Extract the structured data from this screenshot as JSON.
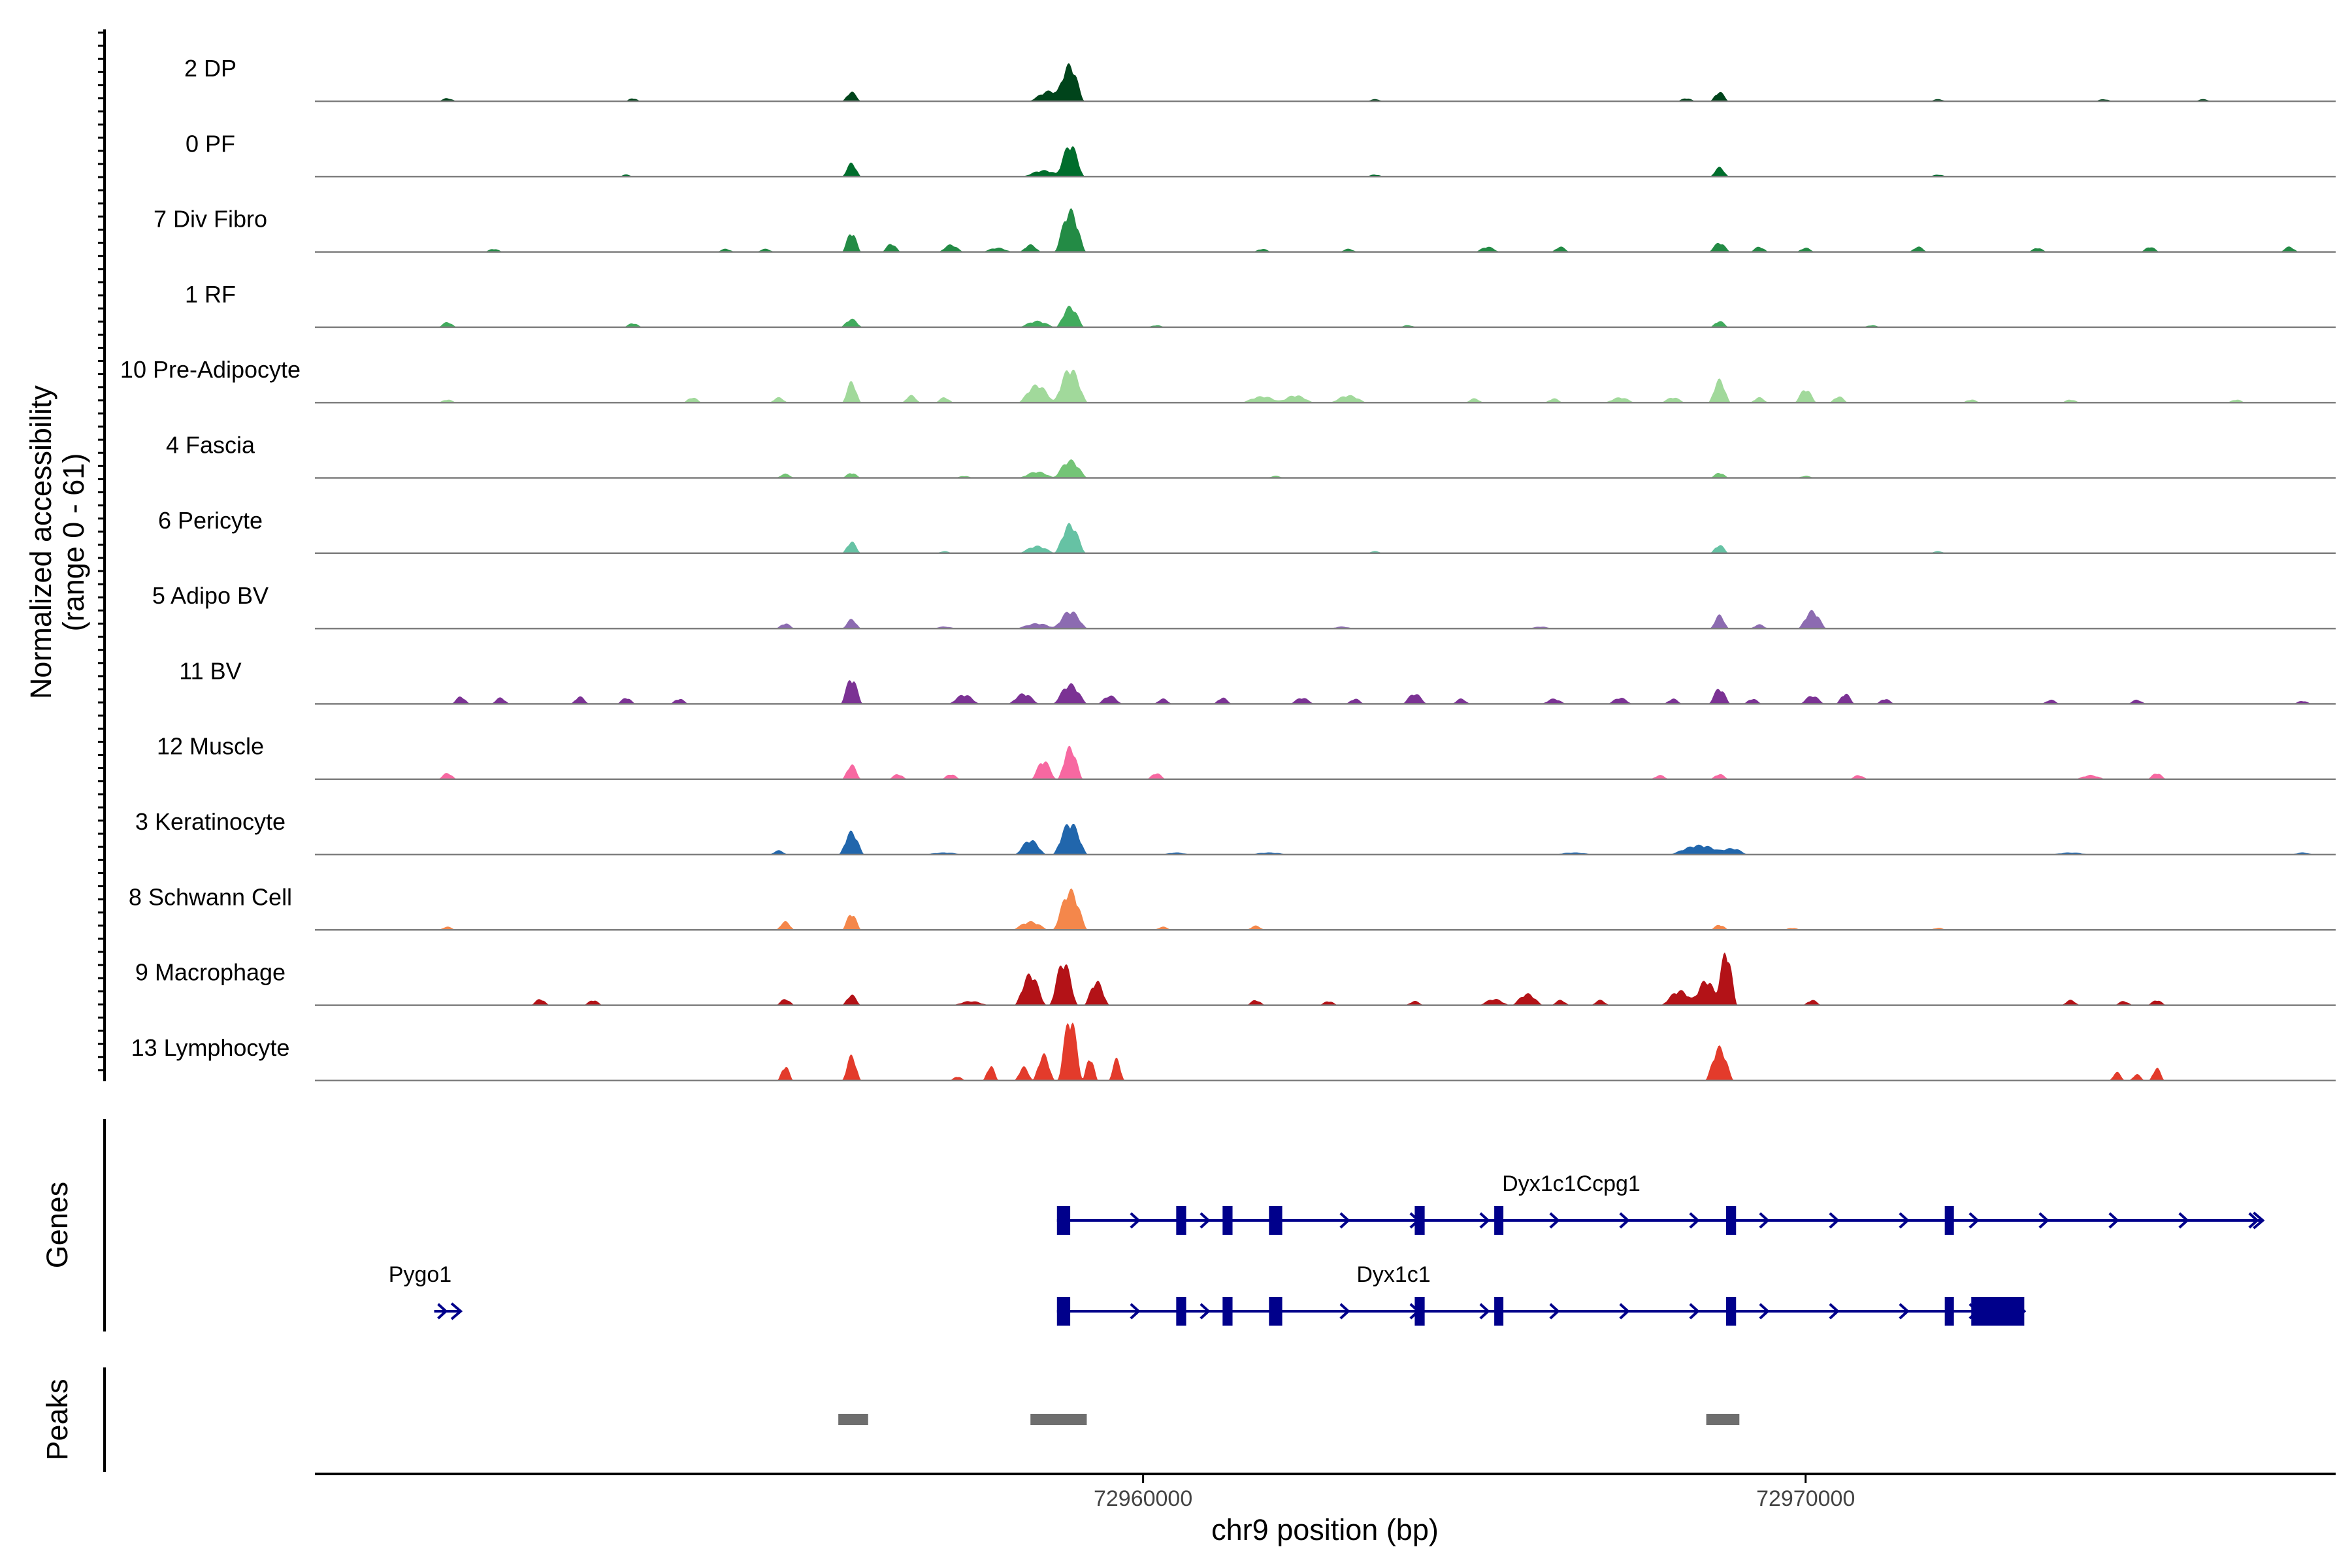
{
  "chart_data": {
    "type": "area",
    "title": "",
    "xlabel": "chr9 position (bp)",
    "ylabel": "Normalized accessibility",
    "ylabel_range": "(range 0 - 61)",
    "yrange": [
      0,
      61
    ],
    "xlim": [
      72947500,
      72978000
    ],
    "x_ticks": [
      72960000,
      72970000
    ],
    "x_tick_labels": [
      "72960000",
      "72970000"
    ],
    "panels": {
      "genes": "Genes",
      "peaks": "Peaks"
    },
    "tracks": [
      {
        "name": "2 DP",
        "color": "#00441b",
        "peaks": [
          [
            72949500,
            300,
            3
          ],
          [
            72952300,
            250,
            3
          ],
          [
            72955600,
            300,
            9
          ],
          [
            72958900,
            450,
            34
          ],
          [
            72958600,
            700,
            10
          ],
          [
            72968700,
            300,
            9
          ],
          [
            72968200,
            300,
            3
          ],
          [
            72963500,
            300,
            2
          ],
          [
            72972000,
            300,
            2
          ],
          [
            72974500,
            300,
            2
          ],
          [
            72976000,
            300,
            2
          ]
        ]
      },
      {
        "name": "0 PF",
        "color": "#006d2c",
        "peaks": [
          [
            72955600,
            300,
            13
          ],
          [
            72958900,
            450,
            31
          ],
          [
            72958500,
            700,
            6
          ],
          [
            72968700,
            300,
            9
          ],
          [
            72952200,
            250,
            2
          ],
          [
            72963500,
            300,
            2
          ],
          [
            72972000,
            300,
            2
          ]
        ]
      },
      {
        "name": "7 Div Fibro",
        "color": "#238b45",
        "peaks": [
          [
            72955600,
            300,
            19
          ],
          [
            72956200,
            300,
            8
          ],
          [
            72957100,
            400,
            7
          ],
          [
            72958300,
            350,
            7
          ],
          [
            72958900,
            500,
            40
          ],
          [
            72957800,
            500,
            4
          ],
          [
            72961800,
            300,
            3
          ],
          [
            72963100,
            300,
            3
          ],
          [
            72965200,
            400,
            5
          ],
          [
            72966300,
            300,
            5
          ],
          [
            72968700,
            350,
            9
          ],
          [
            72969300,
            300,
            5
          ],
          [
            72970000,
            300,
            4
          ],
          [
            72971700,
            300,
            5
          ],
          [
            72973500,
            300,
            4
          ],
          [
            72975200,
            300,
            5
          ],
          [
            72977300,
            300,
            5
          ],
          [
            72950200,
            300,
            3
          ],
          [
            72953700,
            300,
            3
          ],
          [
            72954300,
            300,
            3
          ]
        ]
      },
      {
        "name": "1 RF",
        "color": "#41ab5d",
        "peaks": [
          [
            72949500,
            300,
            5
          ],
          [
            72952300,
            300,
            4
          ],
          [
            72955600,
            350,
            8
          ],
          [
            72958900,
            450,
            20
          ],
          [
            72958400,
            600,
            6
          ],
          [
            72968700,
            300,
            6
          ],
          [
            72960200,
            300,
            2
          ],
          [
            72964000,
            300,
            2
          ],
          [
            72971000,
            300,
            2
          ]
        ]
      },
      {
        "name": "10 Pre-Adipocyte",
        "color": "#a1d99b",
        "peaks": [
          [
            72949500,
            300,
            3
          ],
          [
            72953200,
            300,
            5
          ],
          [
            72954500,
            300,
            5
          ],
          [
            72955600,
            300,
            20
          ],
          [
            72956500,
            300,
            7
          ],
          [
            72957000,
            300,
            5
          ],
          [
            72958900,
            550,
            33
          ],
          [
            72958400,
            600,
            17
          ],
          [
            72961800,
            700,
            6
          ],
          [
            72962300,
            600,
            7
          ],
          [
            72963100,
            600,
            7
          ],
          [
            72965000,
            300,
            4
          ],
          [
            72966200,
            300,
            4
          ],
          [
            72967200,
            500,
            5
          ],
          [
            72968000,
            400,
            5
          ],
          [
            72968700,
            350,
            22
          ],
          [
            72969300,
            300,
            5
          ],
          [
            72970000,
            350,
            13
          ],
          [
            72970500,
            300,
            6
          ],
          [
            72972500,
            300,
            3
          ],
          [
            72974000,
            300,
            3
          ],
          [
            72976500,
            300,
            3
          ]
        ]
      },
      {
        "name": "4 Fascia",
        "color": "#74c476",
        "peaks": [
          [
            72954600,
            300,
            4
          ],
          [
            72955600,
            300,
            5
          ],
          [
            72958900,
            550,
            17
          ],
          [
            72958400,
            600,
            6
          ],
          [
            72968700,
            300,
            5
          ],
          [
            72957300,
            300,
            2
          ],
          [
            72962000,
            300,
            2
          ],
          [
            72970000,
            300,
            2
          ]
        ]
      },
      {
        "name": "6 Pericyte",
        "color": "#66c2a4",
        "peaks": [
          [
            72955600,
            300,
            11
          ],
          [
            72958900,
            500,
            28
          ],
          [
            72958400,
            600,
            7
          ],
          [
            72968700,
            300,
            8
          ],
          [
            72957000,
            300,
            2
          ],
          [
            72963500,
            300,
            2
          ],
          [
            72972000,
            300,
            2
          ]
        ]
      },
      {
        "name": "5 Adipo BV",
        "color": "#8c6bb1",
        "peaks": [
          [
            72954600,
            300,
            5
          ],
          [
            72955600,
            300,
            9
          ],
          [
            72958900,
            550,
            17
          ],
          [
            72958400,
            700,
            5
          ],
          [
            72968700,
            300,
            13
          ],
          [
            72969300,
            300,
            4
          ],
          [
            72970100,
            450,
            17
          ],
          [
            72957000,
            400,
            2
          ],
          [
            72963000,
            400,
            2
          ],
          [
            72966000,
            400,
            2
          ]
        ]
      },
      {
        "name": "11 BV",
        "color": "#7b3294",
        "peaks": [
          [
            72949700,
            300,
            7
          ],
          [
            72950300,
            300,
            6
          ],
          [
            72951500,
            300,
            7
          ],
          [
            72952200,
            300,
            6
          ],
          [
            72953000,
            300,
            5
          ],
          [
            72955600,
            350,
            25
          ],
          [
            72957300,
            500,
            9
          ],
          [
            72958200,
            500,
            10
          ],
          [
            72958900,
            550,
            19
          ],
          [
            72959500,
            400,
            8
          ],
          [
            72960300,
            300,
            5
          ],
          [
            72961200,
            300,
            6
          ],
          [
            72962400,
            400,
            6
          ],
          [
            72963200,
            300,
            5
          ],
          [
            72964100,
            400,
            10
          ],
          [
            72964800,
            300,
            5
          ],
          [
            72966200,
            400,
            5
          ],
          [
            72967200,
            400,
            6
          ],
          [
            72968000,
            300,
            5
          ],
          [
            72968700,
            350,
            15
          ],
          [
            72969200,
            300,
            5
          ],
          [
            72970100,
            400,
            8
          ],
          [
            72970600,
            300,
            10
          ],
          [
            72971200,
            300,
            5
          ],
          [
            72973700,
            300,
            4
          ],
          [
            72975000,
            300,
            4
          ],
          [
            72977500,
            300,
            3
          ]
        ]
      },
      {
        "name": "12 Muscle",
        "color": "#f768a1",
        "peaks": [
          [
            72949500,
            300,
            6
          ],
          [
            72955600,
            300,
            14
          ],
          [
            72956300,
            300,
            5
          ],
          [
            72957100,
            300,
            5
          ],
          [
            72958900,
            400,
            31
          ],
          [
            72958500,
            400,
            18
          ],
          [
            72960200,
            300,
            6
          ],
          [
            72967800,
            300,
            4
          ],
          [
            72968700,
            300,
            5
          ],
          [
            72970800,
            300,
            4
          ],
          [
            72974300,
            500,
            4
          ],
          [
            72975300,
            300,
            6
          ]
        ]
      },
      {
        "name": "3 Keratinocyte",
        "color": "#2166ac",
        "peaks": [
          [
            72955600,
            400,
            22
          ],
          [
            72958900,
            550,
            31
          ],
          [
            72958300,
            500,
            14
          ],
          [
            72954500,
            300,
            4
          ],
          [
            72957000,
            700,
            2
          ],
          [
            72960500,
            500,
            2
          ],
          [
            72961900,
            700,
            2
          ],
          [
            72968400,
            1000,
            9
          ],
          [
            72968900,
            500,
            6
          ],
          [
            72966500,
            700,
            2
          ],
          [
            72974000,
            700,
            2
          ],
          [
            72977500,
            400,
            2
          ]
        ]
      },
      {
        "name": "8 Schwann Cell",
        "color": "#f4874b",
        "peaks": [
          [
            72949500,
            300,
            3
          ],
          [
            72954600,
            300,
            8
          ],
          [
            72955600,
            300,
            16
          ],
          [
            72958900,
            550,
            38
          ],
          [
            72958300,
            600,
            8
          ],
          [
            72961700,
            300,
            4
          ],
          [
            72960300,
            300,
            3
          ],
          [
            72968700,
            300,
            5
          ],
          [
            72969800,
            300,
            2
          ],
          [
            72972000,
            300,
            2
          ]
        ]
      },
      {
        "name": "9 Macrophage",
        "color": "#b31217",
        "peaks": [
          [
            72950900,
            300,
            6
          ],
          [
            72951700,
            300,
            5
          ],
          [
            72954600,
            300,
            6
          ],
          [
            72955600,
            300,
            10
          ],
          [
            72957400,
            600,
            4
          ],
          [
            72958300,
            500,
            30
          ],
          [
            72958800,
            450,
            42
          ],
          [
            72959300,
            400,
            23
          ],
          [
            72961700,
            300,
            5
          ],
          [
            72962800,
            300,
            4
          ],
          [
            72964100,
            300,
            4
          ],
          [
            72965300,
            500,
            6
          ],
          [
            72965800,
            500,
            11
          ],
          [
            72966300,
            300,
            5
          ],
          [
            72966900,
            300,
            5
          ],
          [
            72968100,
            600,
            14
          ],
          [
            72968500,
            500,
            24
          ],
          [
            72968800,
            350,
            52
          ],
          [
            72970100,
            300,
            5
          ],
          [
            72974000,
            300,
            5
          ],
          [
            72974800,
            300,
            4
          ],
          [
            72975300,
            300,
            5
          ]
        ]
      },
      {
        "name": "13 Lymphocyte",
        "color": "#e33b2b",
        "peaks": [
          [
            72954600,
            250,
            14
          ],
          [
            72955600,
            300,
            24
          ],
          [
            72957700,
            250,
            14
          ],
          [
            72957200,
            250,
            4
          ],
          [
            72958200,
            300,
            13
          ],
          [
            72958500,
            350,
            25
          ],
          [
            72958900,
            400,
            61
          ],
          [
            72959200,
            250,
            22
          ],
          [
            72959600,
            250,
            21
          ],
          [
            72968700,
            450,
            32
          ],
          [
            72974700,
            250,
            8
          ],
          [
            72975300,
            250,
            12
          ],
          [
            72975000,
            250,
            6
          ]
        ]
      }
    ],
    "genes": [
      {
        "name": "Dyx1c1Ccpg1",
        "strand": "+",
        "start": 72958700,
        "end": 72976900,
        "exons": [
          [
            72958700,
            72958900
          ],
          [
            72960500,
            72960650
          ],
          [
            72961200,
            72961350
          ],
          [
            72961900,
            72962100
          ],
          [
            72964100,
            72964250
          ],
          [
            72965300,
            72965400
          ],
          [
            72968800,
            72968950
          ],
          [
            72972100,
            72972200
          ]
        ]
      },
      {
        "name": "Dyx1c1",
        "strand": "+",
        "start": 72958700,
        "end": 72973300,
        "exons": [
          [
            72958700,
            72958900
          ],
          [
            72960500,
            72960650
          ],
          [
            72961200,
            72961350
          ],
          [
            72961900,
            72962100
          ],
          [
            72964100,
            72964250
          ],
          [
            72965300,
            72965400
          ],
          [
            72968800,
            72968950
          ],
          [
            72972100,
            72972200
          ],
          [
            72972500,
            72973300
          ]
        ]
      },
      {
        "name": "Pygo1",
        "strand": "+",
        "start": 72949300,
        "end": 72949700,
        "exons": []
      }
    ],
    "peak_regions": [
      [
        72955400,
        72955850
      ],
      [
        72958300,
        72959150
      ],
      [
        72968500,
        72969000
      ]
    ]
  }
}
